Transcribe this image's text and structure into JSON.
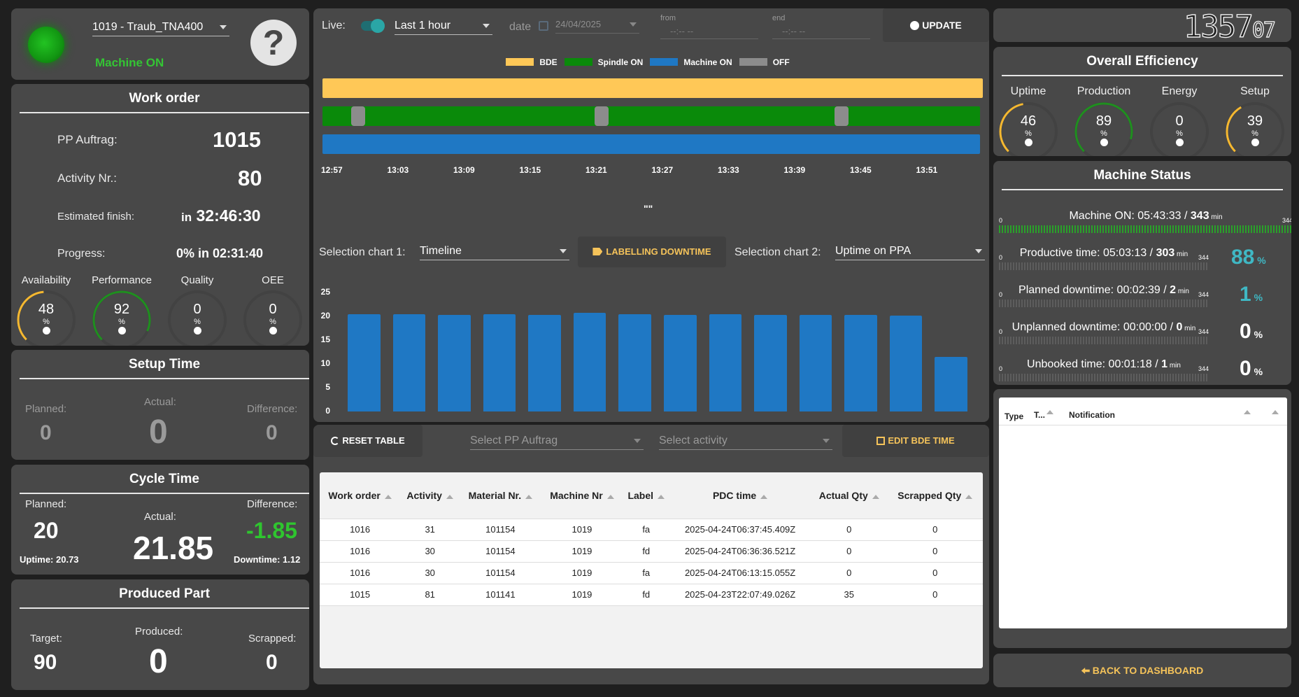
{
  "machine": {
    "name": "1019 - Traub_TNA400",
    "status": "Machine ON",
    "help_icon": "question-mark-icon",
    "status_color": "#18a018"
  },
  "work_order": {
    "title": "Work order",
    "pp_label": "PP Auftrag:",
    "pp_value": "1015",
    "activity_label": "Activity Nr.:",
    "activity_value": "80",
    "est_label": "Estimated finish:",
    "est_prefix": "in",
    "est_value": "32:46:30",
    "progress_label": "Progress:",
    "progress_value": "0% in 02:31:40",
    "gauges": [
      {
        "label": "Availability",
        "value": "48",
        "unit": "%",
        "icon": "clock-icon",
        "fraction": 0.48,
        "color": "#f5b830"
      },
      {
        "label": "Performance",
        "value": "92",
        "unit": "%",
        "icon": "rocket-icon",
        "fraction": 0.92,
        "color": "#1f8f1f"
      },
      {
        "label": "Quality",
        "value": "0",
        "unit": "%",
        "icon": "thumbs-up-icon",
        "fraction": 0,
        "color": "#1f8f1f"
      },
      {
        "label": "OEE",
        "value": "0",
        "unit": "%",
        "icon": "heartbeat-icon",
        "fraction": 0,
        "color": "#1f8f1f"
      }
    ]
  },
  "setup_time": {
    "title": "Setup Time",
    "planned_label": "Planned:",
    "planned": "0",
    "actual_label": "Actual:",
    "actual": "0",
    "diff_label": "Difference:",
    "diff": "0"
  },
  "cycle_time": {
    "title": "Cycle Time",
    "planned_label": "Planned:",
    "planned": "20",
    "actual_label": "Actual:",
    "actual": "21.85",
    "diff_label": "Difference:",
    "diff": "-1.85",
    "uptime": "Uptime: 20.73",
    "downtime": "Downtime: 1.12"
  },
  "produced_part": {
    "title": "Produced Part",
    "target_label": "Target:",
    "target": "90",
    "produced_label": "Produced:",
    "produced": "0",
    "scrapped_label": "Scrapped:",
    "scrapped": "0"
  },
  "controls": {
    "live_label": "Live:",
    "range": "Last 1 hour",
    "date_label": "date",
    "date_value": "24/04/2025",
    "from_label": "from",
    "from_value": "--:-- --",
    "end_label": "end",
    "end_value": "--:-- --",
    "update_label": "UPDATE"
  },
  "timeline": {
    "legend": [
      {
        "name": "BDE",
        "color": "#ffc857"
      },
      {
        "name": "Spindle ON",
        "color": "#0a8a0a"
      },
      {
        "name": "Machine ON",
        "color": "#1f78c4"
      },
      {
        "name": "OFF",
        "color": "#8c8c8c"
      }
    ],
    "ticks": [
      "12:57",
      "13:03",
      "13:09",
      "13:15",
      "13:21",
      "13:27",
      "13:33",
      "13:39",
      "13:45",
      "13:51"
    ],
    "caption": "\"\""
  },
  "selection": {
    "chart1_label": "Selection chart 1:",
    "chart1_value": "Timeline",
    "labelling_btn": "LABELLING DOWNTIME",
    "chart2_label": "Selection chart 2:",
    "chart2_value": "Uptime on PPA"
  },
  "chart_data": {
    "type": "bar",
    "values": [
      20.5,
      20.5,
      20.3,
      20.5,
      20.3,
      20.7,
      20.5,
      20.3,
      20.5,
      20.3,
      20.3,
      20.3,
      20.1,
      11.5
    ],
    "ylim": [
      0,
      25
    ],
    "yticks": [
      "0",
      "5",
      "10",
      "15",
      "20",
      "25"
    ],
    "color": "#1f78c4"
  },
  "table": {
    "reset_label": "RESET TABLE",
    "pp_placeholder": "Select PP Auftrag",
    "activity_placeholder": "Select activity",
    "edit_label": "EDIT BDE TIME",
    "headers": [
      "Work order",
      "Activity",
      "Material Nr.",
      "Machine Nr",
      "Label",
      "PDC time",
      "Actual Qty",
      "Scrapped Qty"
    ],
    "rows": [
      [
        "1016",
        "31",
        "101154",
        "1019",
        "fa",
        "2025-04-24T06:37:45.409Z",
        "0",
        "0"
      ],
      [
        "1016",
        "30",
        "101154",
        "1019",
        "fd",
        "2025-04-24T06:36:36.521Z",
        "0",
        "0"
      ],
      [
        "1016",
        "30",
        "101154",
        "1019",
        "fa",
        "2025-04-24T06:13:15.055Z",
        "0",
        "0"
      ],
      [
        "1015",
        "81",
        "101141",
        "1019",
        "fd",
        "2025-04-23T22:07:49.026Z",
        "35",
        "0"
      ]
    ]
  },
  "clock": {
    "hhmm": "1357",
    "ss": "07"
  },
  "efficiency": {
    "title": "Overall Efficiency",
    "gauges": [
      {
        "label": "Uptime",
        "value": "46",
        "unit": "%",
        "icon": "power-icon",
        "fraction": 0.46,
        "color": "#f5b830"
      },
      {
        "label": "Production",
        "value": "89",
        "unit": "%",
        "icon": "factory-icon",
        "fraction": 0.89,
        "color": "#1f8f1f"
      },
      {
        "label": "Energy",
        "value": "0",
        "unit": "%",
        "icon": "bolt-icon",
        "fraction": 0,
        "color": "#1f8f1f"
      },
      {
        "label": "Setup",
        "value": "39",
        "unit": "%",
        "icon": "cogs-icon",
        "fraction": 0.39,
        "color": "#f5b830"
      }
    ]
  },
  "machine_status": {
    "title": "Machine Status",
    "rows": [
      {
        "label": "Machine ON: 05:43:33 / ",
        "strong": "343",
        "unit": "min",
        "min": "0",
        "max": "344",
        "pct": "",
        "pct_unit": ""
      },
      {
        "label": "Productive time: 05:03:13 / ",
        "strong": "303",
        "unit": "min",
        "min": "0",
        "max": "344",
        "pct": "88",
        "pct_unit": "%"
      },
      {
        "label": "Planned downtime: 00:02:39 / ",
        "strong": "2",
        "unit": "min",
        "min": "0",
        "max": "344",
        "pct": "1",
        "pct_unit": "%"
      },
      {
        "label": "Unplanned downtime: 00:00:00 / ",
        "strong": "0",
        "unit": "min",
        "min": "0",
        "max": "344",
        "pct": "0",
        "pct_unit": "%"
      },
      {
        "label": "Unbooked time: 00:01:18 / ",
        "strong": "1",
        "unit": "min",
        "min": "0",
        "max": "344",
        "pct": "0",
        "pct_unit": "%"
      }
    ]
  },
  "notifications": {
    "col_type": "Type",
    "col_t": "T...",
    "col_notification": "Notification"
  },
  "back_label": "BACK TO DASHBOARD"
}
